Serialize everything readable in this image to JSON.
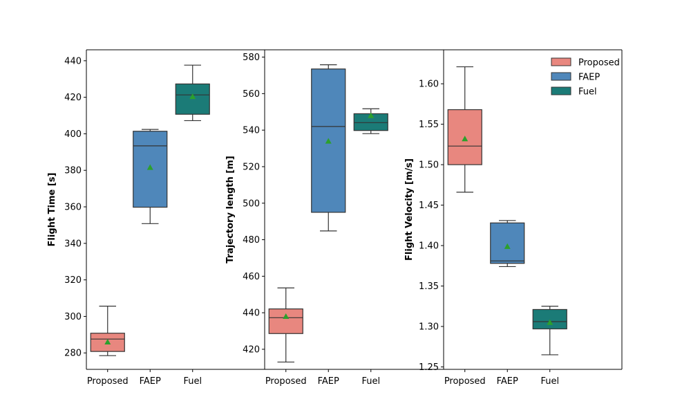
{
  "chart_data": [
    {
      "type": "box",
      "ylabel": "Flight Time [s]",
      "xlabel": "",
      "ylim": [
        271,
        446
      ],
      "yticks": [
        280,
        300,
        320,
        340,
        360,
        380,
        400,
        420,
        440
      ],
      "categories": [
        "Proposed",
        "FAEP",
        "Fuel"
      ],
      "boxes": [
        {
          "name": "Proposed",
          "whisker_low": 278.5,
          "q1": 280.8,
          "median": 287.6,
          "q3": 290.8,
          "whisker_high": 305.6,
          "mean": 286.0,
          "color": "#E8877F"
        },
        {
          "name": "FAEP",
          "whisker_low": 350.8,
          "q1": 359.8,
          "median": 393.4,
          "q3": 401.4,
          "whisker_high": 402.4,
          "mean": 381.6,
          "color": "#4F87BA"
        },
        {
          "name": "Fuel",
          "whisker_low": 407.2,
          "q1": 410.7,
          "median": 421.3,
          "q3": 427.3,
          "whisker_high": 437.6,
          "mean": 420.4,
          "color": "#1B7B77"
        }
      ]
    },
    {
      "type": "box",
      "ylabel": "Trajectory length [m]",
      "xlabel": "",
      "ylim": [
        409,
        584
      ],
      "yticks": [
        420,
        440,
        460,
        480,
        500,
        520,
        540,
        560,
        580
      ],
      "categories": [
        "Proposed",
        "FAEP",
        "Fuel"
      ],
      "boxes": [
        {
          "name": "Proposed",
          "whisker_low": 413.0,
          "q1": 428.6,
          "median": 437.3,
          "q3": 442.1,
          "whisker_high": 453.6,
          "mean": 438.0,
          "color": "#E8877F"
        },
        {
          "name": "FAEP",
          "whisker_low": 484.8,
          "q1": 495.0,
          "median": 542.0,
          "q3": 573.5,
          "whisker_high": 575.8,
          "mean": 534.0,
          "color": "#4F87BA"
        },
        {
          "name": "Fuel",
          "whisker_low": 538.1,
          "q1": 539.8,
          "median": 544.1,
          "q3": 549.0,
          "whisker_high": 551.7,
          "mean": 548.0,
          "color": "#1B7B77"
        }
      ]
    },
    {
      "type": "box",
      "ylabel": "Flight Velocity [m/s]",
      "xlabel": "",
      "ylim": [
        1.247,
        1.642
      ],
      "yticks": [
        1.25,
        1.3,
        1.35,
        1.4,
        1.45,
        1.5,
        1.55,
        1.6
      ],
      "ytick_labels": [
        "1.25",
        "1.30",
        "1.35",
        "1.40",
        "1.45",
        "1.50",
        "1.55",
        "1.60"
      ],
      "categories": [
        "Proposed",
        "FAEP",
        "Fuel"
      ],
      "boxes": [
        {
          "name": "Proposed",
          "whisker_low": 1.466,
          "q1": 1.5,
          "median": 1.523,
          "q3": 1.568,
          "whisker_high": 1.621,
          "mean": 1.532,
          "color": "#E8877F"
        },
        {
          "name": "FAEP",
          "whisker_low": 1.374,
          "q1": 1.378,
          "median": 1.381,
          "q3": 1.428,
          "whisker_high": 1.431,
          "mean": 1.399,
          "color": "#4F87BA"
        },
        {
          "name": "Fuel",
          "whisker_low": 1.265,
          "q1": 1.297,
          "median": 1.306,
          "q3": 1.321,
          "whisker_high": 1.325,
          "mean": 1.305,
          "color": "#1B7B77"
        }
      ],
      "legend": {
        "position": "top-right",
        "entries": [
          {
            "label": "Proposed",
            "color": "#E8877F"
          },
          {
            "label": "FAEP",
            "color": "#4F87BA"
          },
          {
            "label": "Fuel",
            "color": "#1B7B77"
          }
        ]
      }
    }
  ],
  "style": {
    "mean_marker_color": "#2CA02C",
    "line_color": "#333333",
    "axis_color": "#000000"
  }
}
